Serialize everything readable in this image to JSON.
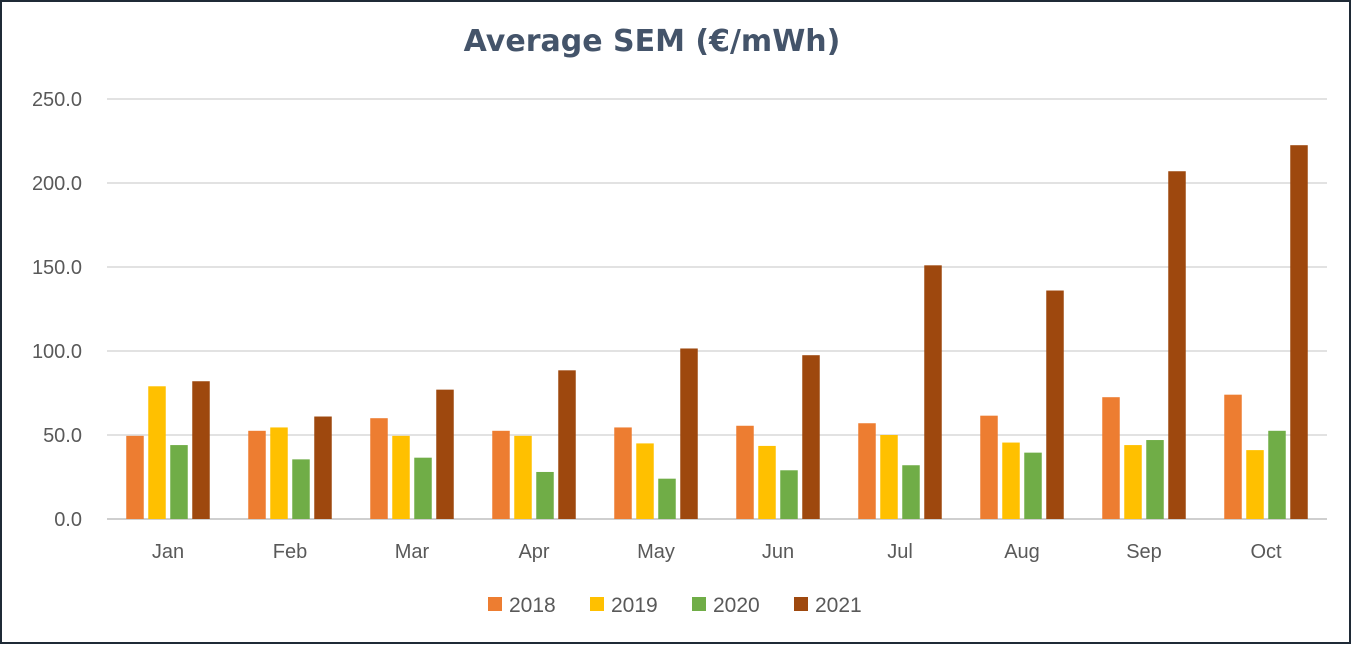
{
  "chart_data": {
    "type": "bar",
    "title": "Average SEM (€/mWh)",
    "categories": [
      "Jan",
      "Feb",
      "Mar",
      "Apr",
      "May",
      "Jun",
      "Jul",
      "Aug",
      "Sep",
      "Oct"
    ],
    "series": [
      {
        "name": "2018",
        "color": "#ed7d31",
        "values": [
          49.5,
          52.5,
          60.0,
          52.5,
          54.5,
          55.5,
          57.0,
          61.5,
          72.5,
          74.0
        ]
      },
      {
        "name": "2019",
        "color": "#ffc000",
        "values": [
          79.0,
          54.5,
          49.5,
          49.5,
          45.0,
          43.5,
          50.0,
          45.5,
          44.0,
          41.0
        ]
      },
      {
        "name": "2020",
        "color": "#70ad47",
        "values": [
          44.0,
          35.5,
          36.5,
          28.0,
          24.0,
          29.0,
          32.0,
          39.5,
          47.0,
          52.5
        ]
      },
      {
        "name": "2021",
        "color": "#9e480e",
        "values": [
          82.0,
          61.0,
          77.0,
          88.5,
          101.5,
          97.5,
          151.0,
          136.0,
          207.0,
          222.5
        ]
      }
    ],
    "ylim": [
      0,
      250
    ],
    "yticks": [
      "0.0",
      "50.0",
      "100.0",
      "150.0",
      "200.0",
      "250.0"
    ],
    "grid": true,
    "legend": "bottom"
  }
}
